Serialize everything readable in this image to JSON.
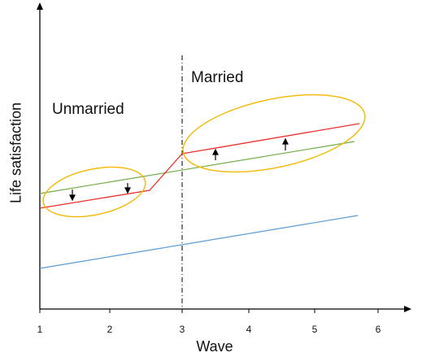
{
  "diagram": {
    "x_axis_title": "Wave",
    "y_axis_title": "Life satisfaction",
    "x_ticks": [
      "1",
      "2",
      "3",
      "4",
      "5",
      "6"
    ],
    "region_labels": {
      "left": "Unmarried",
      "right": "Married"
    },
    "colors": {
      "axis": "#000000",
      "individual_line": "#e8302a",
      "trend_line": "#70ad47",
      "lower_line": "#5b9bd5",
      "ellipse": "#f5b800",
      "divider": "#000000"
    }
  }
}
